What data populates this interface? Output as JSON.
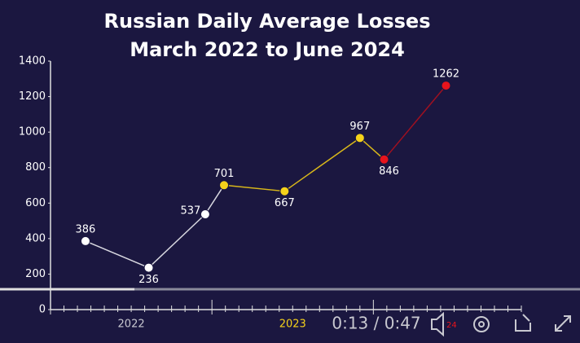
{
  "chart_data": {
    "type": "line",
    "title": [
      "Russian Daily Average Losses",
      "March 2022 to June 2024"
    ],
    "x": [
      2.6,
      7.3,
      11.5,
      12.9,
      17.4,
      23,
      24.8,
      29.4
    ],
    "values": [
      386,
      236,
      537,
      701,
      667,
      967,
      846,
      1262
    ],
    "point_colors": [
      "#ffffff",
      "#ffffff",
      "#ffffff",
      "#f5d21a",
      "#f5d21a",
      "#f5d21a",
      "#e8141c",
      "#e8141c"
    ],
    "line_colors": [
      "#d8d8e0",
      "#d8d8e0",
      "#d8d8e0",
      "#d9b81a",
      "#d9b81a",
      "#d9b81a",
      "#a01020",
      "#a01020"
    ],
    "xlim": [
      0,
      35
    ],
    "xticks": [
      {
        "value": 6,
        "label": "2022"
      },
      {
        "value": 18,
        "label": "2023"
      }
    ],
    "ylim": [
      0,
      1400
    ],
    "yticks": [
      0,
      200,
      400,
      600,
      800,
      1000,
      1200,
      1400
    ]
  },
  "player": {
    "time": "0:13 / 0:47",
    "badge": "24"
  }
}
